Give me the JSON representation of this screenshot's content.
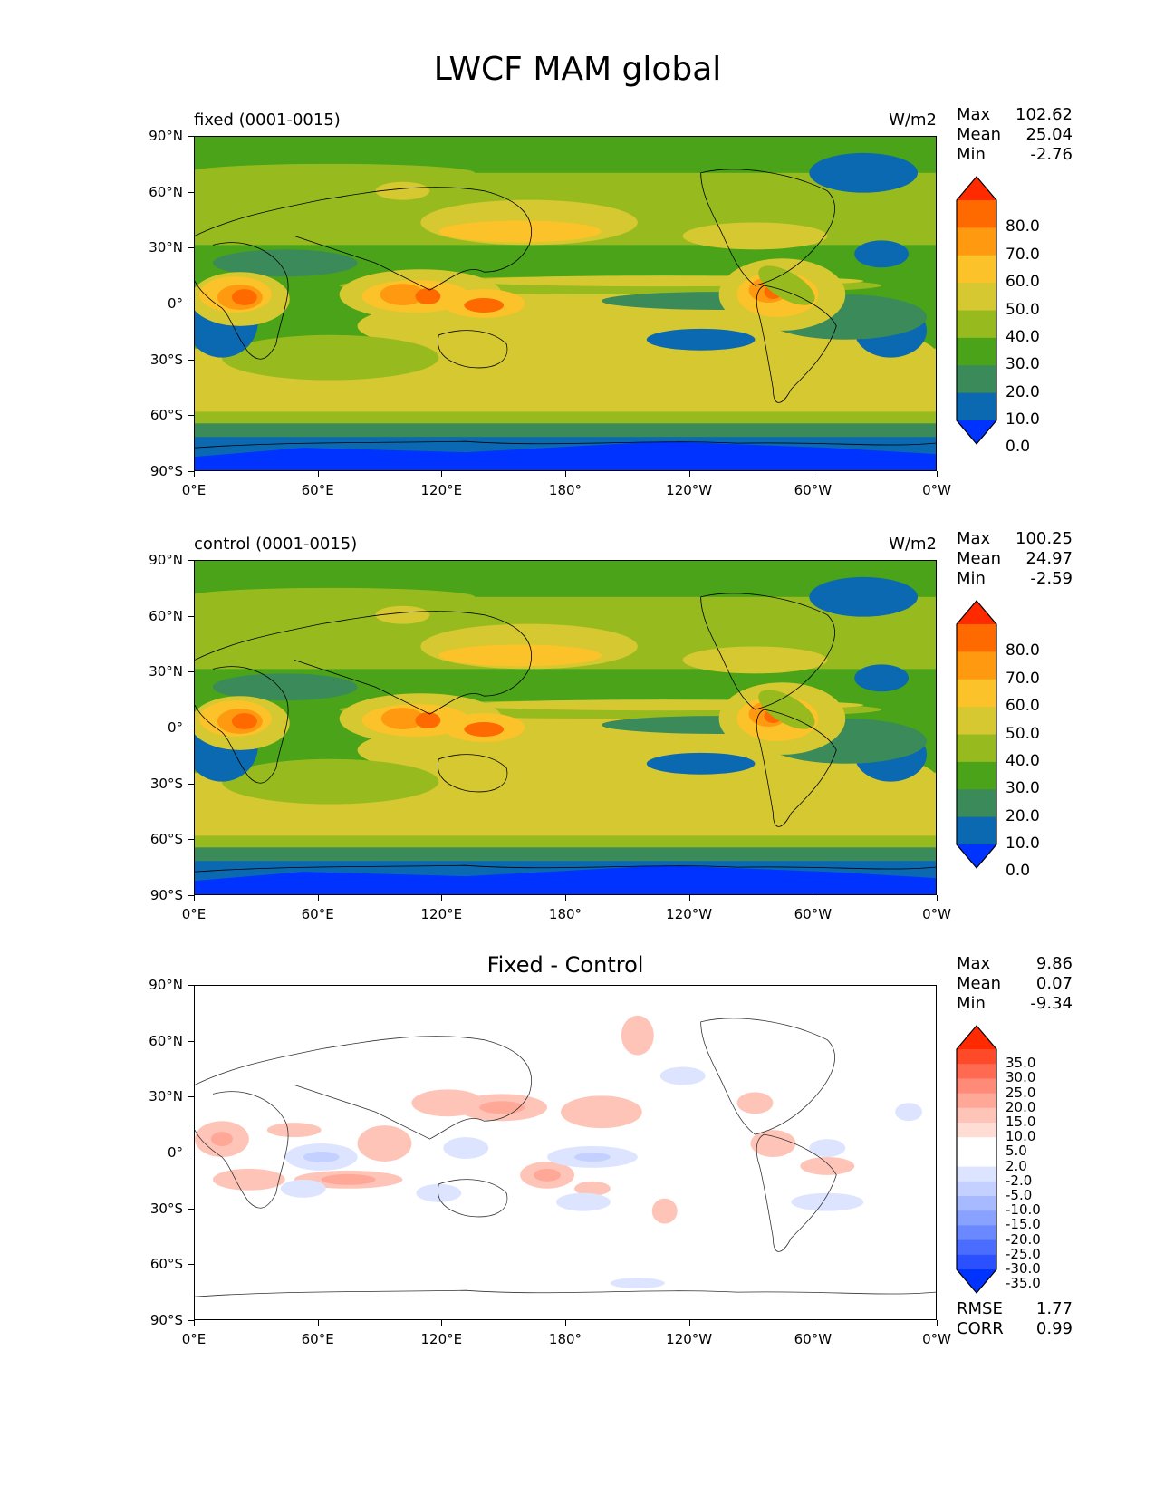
{
  "title": "LWCF MAM global",
  "x_ticks": [
    "0°E",
    "60°E",
    "120°E",
    "180°",
    "120°W",
    "60°W",
    "0°W"
  ],
  "y_ticks": [
    "90°N",
    "60°N",
    "30°N",
    "0°",
    "30°S",
    "60°S",
    "90°S"
  ],
  "panels": [
    {
      "title": "fixed (0001-0015)",
      "units": "W/m2",
      "stats": {
        "max_label": "Max",
        "max": "102.62",
        "mean_label": "Mean",
        "mean": "25.04",
        "min_label": "Min",
        "min": "-2.76"
      },
      "colorbar": {
        "labels": [
          "80.0",
          "70.0",
          "60.0",
          "50.0",
          "40.0",
          "30.0",
          "20.0",
          "10.0",
          "0.0"
        ],
        "colors": [
          "#ff2a00",
          "#ff6a00",
          "#ff9a10",
          "#fcc22a",
          "#d6c831",
          "#97bb1e",
          "#4aa318",
          "#3a8a5a",
          "#0a69b0",
          "#0033ff"
        ]
      }
    },
    {
      "title": "control (0001-0015)",
      "units": "W/m2",
      "stats": {
        "max_label": "Max",
        "max": "100.25",
        "mean_label": "Mean",
        "mean": "24.97",
        "min_label": "Min",
        "min": "-2.59"
      },
      "colorbar": {
        "labels": [
          "80.0",
          "70.0",
          "60.0",
          "50.0",
          "40.0",
          "30.0",
          "20.0",
          "10.0",
          "0.0"
        ],
        "colors": [
          "#ff2a00",
          "#ff6a00",
          "#ff9a10",
          "#fcc22a",
          "#d6c831",
          "#97bb1e",
          "#4aa318",
          "#3a8a5a",
          "#0a69b0",
          "#0033ff"
        ]
      }
    },
    {
      "title": "Fixed - Control",
      "stats": {
        "max_label": "Max",
        "max": "9.86",
        "mean_label": "Mean",
        "mean": "0.07",
        "min_label": "Min",
        "min": "-9.34"
      },
      "colorbar": {
        "labels": [
          "35.0",
          "30.0",
          "25.0",
          "20.0",
          "15.0",
          "10.0",
          "5.0",
          "2.0",
          "-2.0",
          "-5.0",
          "-10.0",
          "-15.0",
          "-20.0",
          "-25.0",
          "-30.0",
          "-35.0"
        ],
        "colors": [
          "#ff2a00",
          "#ff4a2a",
          "#ff6a50",
          "#ff8a78",
          "#ffa898",
          "#ffc4b8",
          "#ffdcd4",
          "#ffffff",
          "#ffffff",
          "#dce4ff",
          "#c4d0ff",
          "#a8baff",
          "#8aa2ff",
          "#6a88ff",
          "#4a6cff",
          "#2a50ff",
          "#0033ff"
        ]
      },
      "rmse_label": "RMSE",
      "rmse": "1.77",
      "corr_label": "CORR",
      "corr": "0.99"
    }
  ],
  "chart_data": [
    {
      "type": "heatmap",
      "title": "fixed (0001-0015)",
      "units": "W/m2",
      "xlim": [
        0,
        360
      ],
      "ylim": [
        -90,
        90
      ],
      "levels": [
        0,
        10,
        20,
        30,
        40,
        50,
        60,
        70,
        80
      ],
      "stats": {
        "max": 102.62,
        "mean": 25.04,
        "min": -2.76
      }
    },
    {
      "type": "heatmap",
      "title": "control (0001-0015)",
      "units": "W/m2",
      "xlim": [
        0,
        360
      ],
      "ylim": [
        -90,
        90
      ],
      "levels": [
        0,
        10,
        20,
        30,
        40,
        50,
        60,
        70,
        80
      ],
      "stats": {
        "max": 100.25,
        "mean": 24.97,
        "min": -2.59
      }
    },
    {
      "type": "heatmap",
      "title": "Fixed - Control",
      "xlim": [
        0,
        360
      ],
      "ylim": [
        -90,
        90
      ],
      "levels": [
        -35,
        -30,
        -25,
        -20,
        -15,
        -10,
        -5,
        -2,
        2,
        5,
        10,
        15,
        20,
        25,
        30,
        35
      ],
      "stats": {
        "max": 9.86,
        "mean": 0.07,
        "min": -9.34,
        "rmse": 1.77,
        "corr": 0.99
      }
    }
  ]
}
